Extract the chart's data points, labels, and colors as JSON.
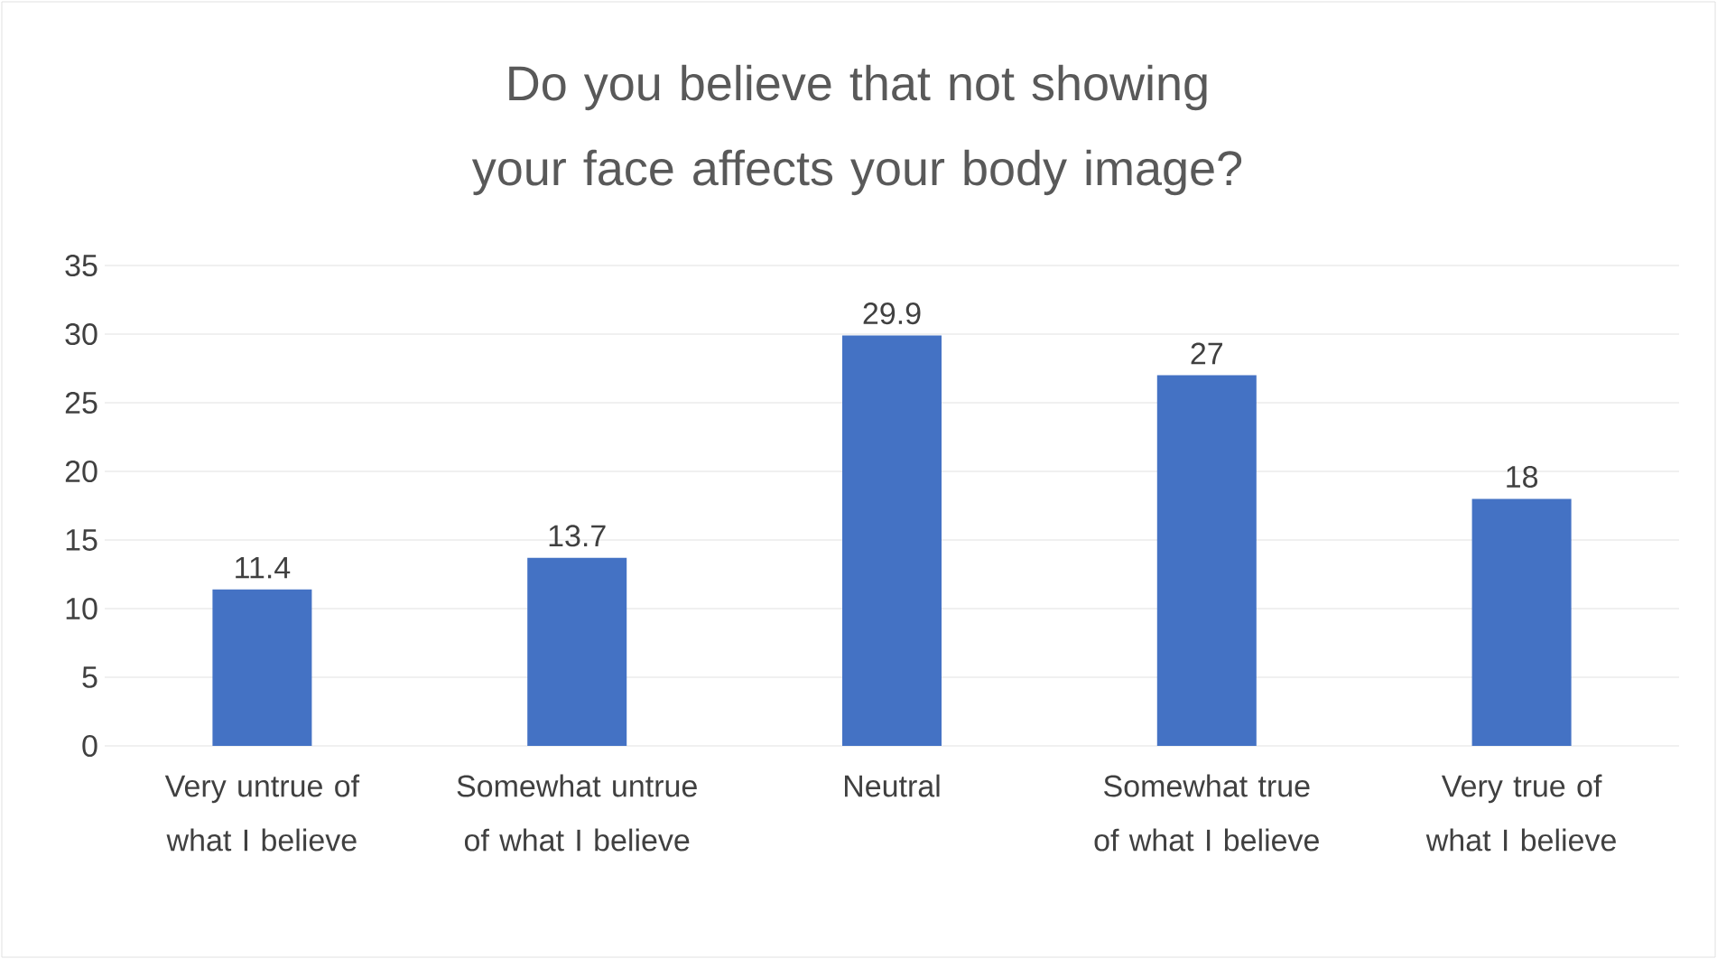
{
  "chart_data": {
    "type": "bar",
    "title": "Do you believe that not showing your face affects your body image?",
    "categories": [
      "Very untrue of what I believe",
      "Somewhat untrue of what I believe",
      "Neutral",
      "Somewhat true of what I believe",
      "Very true of what I believe"
    ],
    "values": [
      11.4,
      13.7,
      29.9,
      27,
      18
    ],
    "color": "#4472c4",
    "ylim": [
      0,
      35
    ],
    "yticks": [
      0,
      5,
      10,
      15,
      20,
      25,
      30,
      35
    ],
    "grid": "y",
    "data_labels": true
  }
}
